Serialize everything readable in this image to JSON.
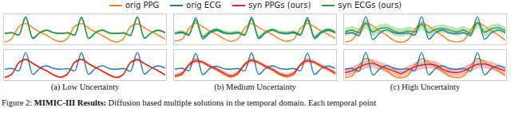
{
  "legend": "top",
  "caption": {
    "number": "Figure 2:",
    "title": "MIMIC-III Results:",
    "text": "Diffusion based multiple solutions in the temporal domain. Each temporal point"
  },
  "chart_data": [
    {
      "type": "line",
      "tick_labels": false,
      "xlim": [
        0,
        23
      ],
      "ylim": [
        -0.6,
        1.1
      ],
      "x": [
        0,
        1,
        2,
        3,
        4,
        5,
        6,
        7,
        8,
        9,
        10,
        11,
        12,
        13,
        14,
        15,
        16,
        17,
        18,
        19,
        20,
        21,
        22,
        23
      ],
      "series": [
        {
          "name": "orig PPG",
          "color": "#ff7f0e",
          "values": [
            -0.5,
            -0.3,
            0.4,
            0.6,
            0.35,
            0.1,
            -0.1,
            -0.35,
            -0.48,
            -0.28,
            0.42,
            0.6,
            0.33,
            0.1,
            -0.12,
            -0.36,
            -0.5,
            -0.3,
            0.4,
            0.58,
            0.35,
            0.12,
            -0.1,
            -0.35
          ]
        },
        {
          "name": "orig ECG",
          "color": "#1f77b4",
          "values": [
            0,
            0.05,
            -0.1,
            1.0,
            -0.3,
            0.05,
            0.2,
            0.05,
            0,
            0.04,
            -0.1,
            0.98,
            -0.3,
            0.06,
            0.21,
            0.04,
            0,
            0.05,
            -0.12,
            1.0,
            -0.28,
            0.05,
            0.2,
            0.05
          ]
        },
        {
          "name": "syn ECGs (ours)",
          "color": "#2ca02c",
          "values": [
            0.01,
            0.05,
            -0.09,
            0.96,
            -0.27,
            0.05,
            0.19,
            0.05,
            0.01,
            0.05,
            -0.1,
            0.95,
            -0.28,
            0.05,
            0.2,
            0.04,
            0.01,
            0.04,
            -0.11,
            0.97,
            -0.27,
            0.05,
            0.19,
            0.05
          ],
          "lower": [
            -0.04,
            0,
            -0.14,
            0.91,
            -0.32,
            0,
            0.14,
            0,
            -0.04,
            0,
            -0.15,
            0.9,
            -0.33,
            0,
            0.15,
            -0.01,
            -0.04,
            -0.01,
            -0.16,
            0.92,
            -0.32,
            0,
            0.14,
            0
          ],
          "upper": [
            0.06,
            0.1,
            -0.04,
            1.01,
            -0.22,
            0.1,
            0.24,
            0.1,
            0.06,
            0.1,
            -0.05,
            1.0,
            -0.23,
            0.1,
            0.25,
            0.09,
            0.06,
            0.09,
            -0.06,
            1.02,
            -0.22,
            0.1,
            0.24,
            0.1
          ]
        }
      ]
    },
    {
      "type": "line",
      "tick_labels": false,
      "xlim": [
        0,
        23
      ],
      "ylim": [
        -0.6,
        1.1
      ],
      "x": [
        0,
        1,
        2,
        3,
        4,
        5,
        6,
        7,
        8,
        9,
        10,
        11,
        12,
        13,
        14,
        15,
        16,
        17,
        18,
        19,
        20,
        21,
        22,
        23
      ],
      "series": [
        {
          "name": "orig PPG",
          "color": "#ff7f0e",
          "values": [
            -0.45,
            -0.35,
            0.3,
            0.62,
            0.4,
            0.15,
            -0.05,
            -0.3,
            -0.47,
            -0.33,
            0.32,
            0.6,
            0.38,
            0.14,
            -0.06,
            -0.32,
            -0.46,
            -0.34,
            0.3,
            0.61,
            0.4,
            0.15,
            -0.05,
            -0.3
          ]
        },
        {
          "name": "orig ECG",
          "color": "#1f77b4",
          "values": [
            0,
            0.06,
            -0.1,
            0.95,
            -0.32,
            0.04,
            0.18,
            0.04,
            0,
            0.05,
            -0.1,
            0.97,
            -0.3,
            0.05,
            0.2,
            0.05,
            0,
            0.05,
            -0.1,
            0.96,
            -0.31,
            0.05,
            0.19,
            0.04
          ]
        },
        {
          "name": "syn ECGs (ours)",
          "color": "#2ca02c",
          "values": [
            0.03,
            0.1,
            -0.05,
            0.8,
            -0.2,
            0.1,
            0.25,
            0.08,
            0.02,
            0.08,
            -0.08,
            0.85,
            -0.22,
            0.08,
            0.24,
            0.07,
            0.03,
            0.1,
            -0.06,
            0.82,
            -0.2,
            0.1,
            0.25,
            0.08
          ],
          "lower": [
            -0.09,
            -0.02,
            -0.17,
            0.68,
            -0.32,
            -0.02,
            0.13,
            -0.04,
            -0.1,
            -0.04,
            -0.2,
            0.73,
            -0.34,
            -0.04,
            0.12,
            -0.05,
            -0.09,
            -0.02,
            -0.18,
            0.7,
            -0.32,
            -0.02,
            0.13,
            -0.04
          ],
          "upper": [
            0.15,
            0.22,
            0.07,
            0.92,
            -0.08,
            0.22,
            0.37,
            0.2,
            0.14,
            0.2,
            0.04,
            0.97,
            -0.1,
            0.2,
            0.36,
            0.19,
            0.15,
            0.22,
            0.06,
            0.94,
            -0.08,
            0.22,
            0.37,
            0.2
          ]
        }
      ]
    },
    {
      "type": "line",
      "tick_labels": false,
      "xlim": [
        0,
        23
      ],
      "ylim": [
        -0.6,
        1.1
      ],
      "x": [
        0,
        1,
        2,
        3,
        4,
        5,
        6,
        7,
        8,
        9,
        10,
        11,
        12,
        13,
        14,
        15,
        16,
        17,
        18,
        19,
        20,
        21,
        22,
        23
      ],
      "series": [
        {
          "name": "orig PPG",
          "color": "#ff7f0e",
          "values": [
            -0.5,
            -0.4,
            0.2,
            0.65,
            0.45,
            0.15,
            -0.1,
            -0.4,
            -0.52,
            -0.38,
            0.22,
            0.63,
            0.43,
            0.14,
            -0.12,
            -0.42,
            -0.5,
            -0.4,
            0.2,
            0.64,
            0.45,
            0.15,
            -0.1,
            -0.4
          ]
        },
        {
          "name": "orig ECG",
          "color": "#1f77b4",
          "values": [
            0,
            0.05,
            -0.12,
            1.0,
            -0.35,
            0.03,
            0.22,
            0.05,
            0,
            0.04,
            -0.1,
            1.0,
            -0.33,
            0.05,
            0.2,
            0.04,
            0,
            0.05,
            -0.11,
            0.99,
            -0.34,
            0.04,
            0.21,
            0.05
          ]
        },
        {
          "name": "syn ECGs (ours)",
          "color": "#2ca02c",
          "values": [
            0.1,
            0.2,
            0.05,
            0.6,
            0.1,
            0.3,
            0.35,
            0.15,
            0.05,
            0.15,
            0.1,
            0.55,
            0.05,
            0.25,
            0.3,
            0.2,
            0.1,
            0.2,
            0.0,
            0.62,
            0.08,
            0.28,
            0.35,
            0.15
          ],
          "lower": [
            -0.15,
            -0.05,
            -0.2,
            0.35,
            -0.15,
            0.05,
            0.1,
            -0.1,
            -0.2,
            -0.1,
            -0.15,
            0.3,
            -0.2,
            0,
            0.05,
            -0.05,
            -0.15,
            -0.05,
            -0.25,
            0.37,
            -0.17,
            0.03,
            0.1,
            -0.1
          ],
          "upper": [
            0.35,
            0.45,
            0.3,
            0.85,
            0.35,
            0.55,
            0.6,
            0.4,
            0.3,
            0.4,
            0.35,
            0.8,
            0.3,
            0.5,
            0.55,
            0.45,
            0.35,
            0.45,
            0.25,
            0.87,
            0.33,
            0.53,
            0.6,
            0.4
          ]
        }
      ]
    },
    {
      "type": "line",
      "title": "(a) Low Uncertainty",
      "tick_labels": false,
      "xlim": [
        0,
        23
      ],
      "ylim": [
        -0.6,
        1.1
      ],
      "x": [
        0,
        1,
        2,
        3,
        4,
        5,
        6,
        7,
        8,
        9,
        10,
        11,
        12,
        13,
        14,
        15,
        16,
        17,
        18,
        19,
        20,
        21,
        22,
        23
      ],
      "series": [
        {
          "name": "orig PPG",
          "color": "#ff7f0e",
          "values": [
            -0.5,
            -0.3,
            0.4,
            0.6,
            0.35,
            0.1,
            -0.1,
            -0.35,
            -0.48,
            -0.28,
            0.42,
            0.6,
            0.33,
            0.1,
            -0.12,
            -0.36,
            -0.5,
            -0.3,
            0.4,
            0.58,
            0.35,
            0.12,
            -0.1,
            -0.35
          ]
        },
        {
          "name": "orig ECG",
          "color": "#1f77b4",
          "values": [
            0,
            0.05,
            -0.1,
            1.0,
            -0.3,
            0.05,
            0.2,
            0.05,
            0,
            0.04,
            -0.1,
            0.98,
            -0.3,
            0.06,
            0.21,
            0.04,
            0,
            0.05,
            -0.12,
            1.0,
            -0.28,
            0.05,
            0.2,
            0.05
          ]
        },
        {
          "name": "syn PPGs (ours)",
          "color": "#d62728",
          "values": [
            -0.48,
            -0.29,
            0.38,
            0.58,
            0.36,
            0.11,
            -0.09,
            -0.33,
            -0.47,
            -0.27,
            0.4,
            0.59,
            0.34,
            0.11,
            -0.11,
            -0.34,
            -0.48,
            -0.29,
            0.39,
            0.57,
            0.34,
            0.12,
            -0.09,
            -0.34
          ],
          "lower": [
            -0.53,
            -0.34,
            0.33,
            0.53,
            0.31,
            0.06,
            -0.14,
            -0.38,
            -0.52,
            -0.32,
            0.35,
            0.54,
            0.29,
            0.06,
            -0.16,
            -0.39,
            -0.53,
            -0.34,
            0.34,
            0.52,
            0.29,
            0.07,
            -0.14,
            -0.39
          ],
          "upper": [
            -0.43,
            -0.24,
            0.43,
            0.63,
            0.41,
            0.16,
            -0.04,
            -0.28,
            -0.42,
            -0.22,
            0.45,
            0.64,
            0.39,
            0.16,
            -0.06,
            -0.29,
            -0.43,
            -0.24,
            0.44,
            0.62,
            0.39,
            0.17,
            -0.04,
            -0.29
          ]
        }
      ]
    },
    {
      "type": "line",
      "title": "(b) Medium Uncertainty",
      "tick_labels": false,
      "xlim": [
        0,
        23
      ],
      "ylim": [
        -0.6,
        1.1
      ],
      "x": [
        0,
        1,
        2,
        3,
        4,
        5,
        6,
        7,
        8,
        9,
        10,
        11,
        12,
        13,
        14,
        15,
        16,
        17,
        18,
        19,
        20,
        21,
        22,
        23
      ],
      "series": [
        {
          "name": "orig PPG",
          "color": "#ff7f0e",
          "values": [
            -0.45,
            -0.35,
            0.3,
            0.62,
            0.4,
            0.15,
            -0.05,
            -0.3,
            -0.47,
            -0.33,
            0.32,
            0.6,
            0.38,
            0.14,
            -0.06,
            -0.32,
            -0.46,
            -0.34,
            0.3,
            0.61,
            0.4,
            0.15,
            -0.05,
            -0.3
          ]
        },
        {
          "name": "orig ECG",
          "color": "#1f77b4",
          "values": [
            0,
            0.06,
            -0.1,
            0.95,
            -0.32,
            0.04,
            0.18,
            0.04,
            0,
            0.05,
            -0.1,
            0.97,
            -0.3,
            0.05,
            0.2,
            0.05,
            0,
            0.05,
            -0.1,
            0.96,
            -0.31,
            0.05,
            0.19,
            0.04
          ]
        },
        {
          "name": "syn PPGs (ours)",
          "color": "#d62728",
          "values": [
            -0.38,
            -0.25,
            0.25,
            0.5,
            0.42,
            0.2,
            0.02,
            -0.22,
            -0.4,
            -0.22,
            0.28,
            0.52,
            0.4,
            0.18,
            0,
            -0.25,
            -0.38,
            -0.24,
            0.26,
            0.5,
            0.42,
            0.2,
            0.02,
            -0.22
          ],
          "lower": [
            -0.5,
            -0.37,
            0.13,
            0.38,
            0.3,
            0.08,
            -0.1,
            -0.34,
            -0.52,
            -0.34,
            0.16,
            0.4,
            0.28,
            0.06,
            -0.12,
            -0.37,
            -0.5,
            -0.36,
            0.14,
            0.38,
            0.3,
            0.08,
            -0.1,
            -0.34
          ],
          "upper": [
            -0.26,
            -0.13,
            0.37,
            0.62,
            0.54,
            0.32,
            0.14,
            -0.1,
            -0.28,
            -0.1,
            0.4,
            0.64,
            0.52,
            0.3,
            0.12,
            -0.13,
            -0.26,
            -0.12,
            0.38,
            0.62,
            0.54,
            0.32,
            0.14,
            -0.1
          ]
        }
      ]
    },
    {
      "type": "line",
      "title": "(c) High Uncertainty",
      "tick_labels": false,
      "xlim": [
        0,
        23
      ],
      "ylim": [
        -0.6,
        1.1
      ],
      "x": [
        0,
        1,
        2,
        3,
        4,
        5,
        6,
        7,
        8,
        9,
        10,
        11,
        12,
        13,
        14,
        15,
        16,
        17,
        18,
        19,
        20,
        21,
        22,
        23
      ],
      "series": [
        {
          "name": "orig PPG",
          "color": "#ff7f0e",
          "values": [
            -0.5,
            -0.4,
            0.2,
            0.65,
            0.45,
            0.15,
            -0.1,
            -0.4,
            -0.52,
            -0.38,
            0.22,
            0.63,
            0.43,
            0.14,
            -0.12,
            -0.42,
            -0.5,
            -0.4,
            0.2,
            0.64,
            0.45,
            0.15,
            -0.1,
            -0.4
          ]
        },
        {
          "name": "orig ECG",
          "color": "#1f77b4",
          "values": [
            0,
            0.05,
            -0.12,
            1.0,
            -0.35,
            0.03,
            0.22,
            0.05,
            0,
            0.04,
            -0.1,
            1.0,
            -0.33,
            0.05,
            0.2,
            0.04,
            0,
            0.05,
            -0.11,
            0.99,
            -0.34,
            0.04,
            0.21,
            0.05
          ]
        },
        {
          "name": "syn PPGs (ours)",
          "color": "#d62728",
          "values": [
            -0.2,
            -0.1,
            0.1,
            0.3,
            0.35,
            0.2,
            0.05,
            -0.1,
            -0.25,
            -0.05,
            0.15,
            0.25,
            0.3,
            0.25,
            0,
            -0.15,
            -0.2,
            -0.1,
            0.1,
            0.3,
            0.32,
            0.2,
            0.05,
            -0.1
          ],
          "lower": [
            -0.45,
            -0.35,
            -0.15,
            0.05,
            0.1,
            -0.05,
            -0.2,
            -0.35,
            -0.5,
            -0.3,
            -0.1,
            0,
            0.05,
            0,
            -0.25,
            -0.4,
            -0.45,
            -0.35,
            -0.15,
            0.05,
            0.07,
            -0.05,
            -0.2,
            -0.35
          ],
          "upper": [
            0.05,
            0.15,
            0.35,
            0.55,
            0.6,
            0.45,
            0.3,
            0.15,
            0,
            0.2,
            0.4,
            0.5,
            0.55,
            0.5,
            0.25,
            0.1,
            0.05,
            0.15,
            0.35,
            0.55,
            0.57,
            0.45,
            0.3,
            0.15
          ]
        }
      ]
    }
  ]
}
